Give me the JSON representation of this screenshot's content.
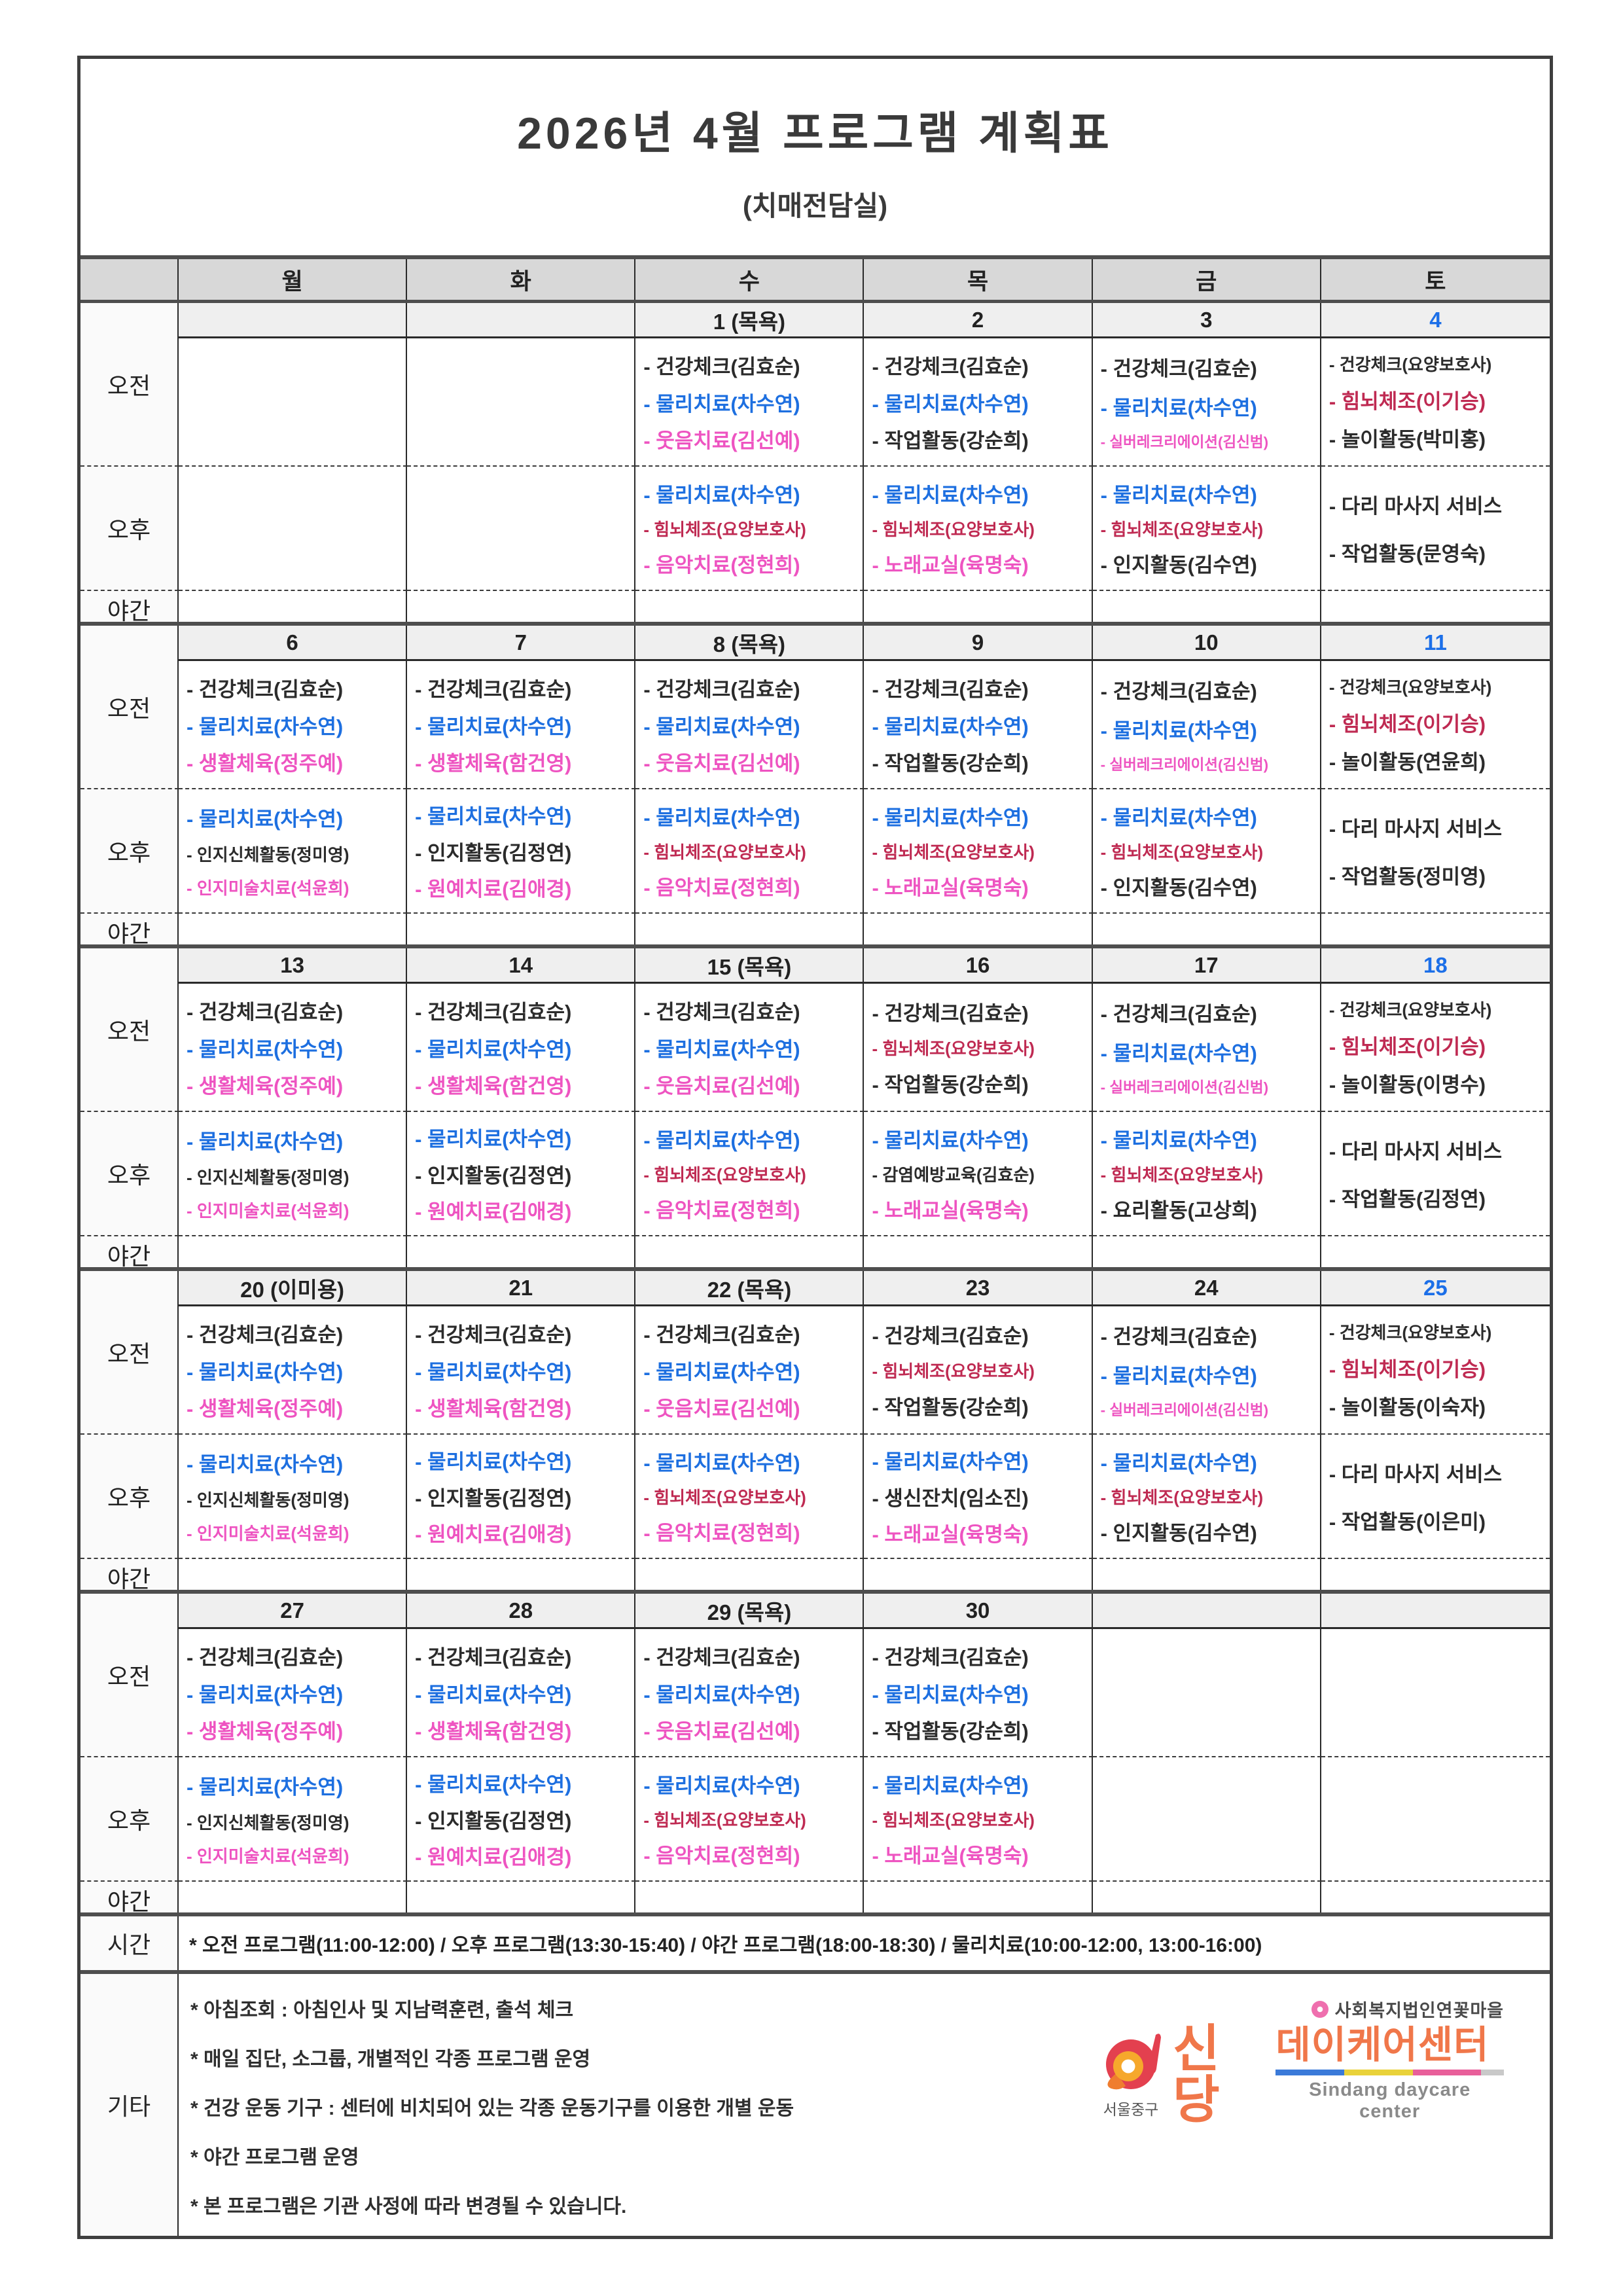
{
  "title": "2026년 4월 프로그램 계획표",
  "subtitle": "(치매전담실)",
  "day_headers": [
    "월",
    "화",
    "수",
    "목",
    "금",
    "토"
  ],
  "row_labels": {
    "am": "오전",
    "pm": "오후",
    "night": "야간",
    "time": "시간",
    "etc": "기타"
  },
  "palette": {
    "k": "#2b2b2b",
    "b": "#1d6fe0",
    "p": "#ee54c1",
    "r": "#bf2a52",
    "sat": "#1c6fe8"
  },
  "weeks": [
    {
      "dates": [
        {
          "t": "",
          "sat": false
        },
        {
          "t": "",
          "sat": false
        },
        {
          "t": "1 (목욕)",
          "sat": false
        },
        {
          "t": "2",
          "sat": false
        },
        {
          "t": "3",
          "sat": false
        },
        {
          "t": "4",
          "sat": true
        }
      ],
      "cells": [
        {
          "am": [],
          "pm": []
        },
        {
          "am": [],
          "pm": []
        },
        {
          "am": [
            [
              "건강체크(김효순)",
              "k"
            ],
            [
              "물리치료(차수연)",
              "b"
            ],
            [
              "웃음치료(김선예)",
              "p"
            ]
          ],
          "pm": [
            [
              "물리치료(차수연)",
              "b"
            ],
            [
              "힘뇌체조(요양보호사)",
              "r"
            ],
            [
              "음악치료(정현희)",
              "p"
            ]
          ]
        },
        {
          "am": [
            [
              "건강체크(김효순)",
              "k"
            ],
            [
              "물리치료(차수연)",
              "b"
            ],
            [
              "작업활동(강순희)",
              "k"
            ]
          ],
          "pm": [
            [
              "물리치료(차수연)",
              "b"
            ],
            [
              "힘뇌체조(요양보호사)",
              "r"
            ],
            [
              "노래교실(육명숙)",
              "p"
            ]
          ]
        },
        {
          "am": [
            [
              "건강체크(김효순)",
              "k"
            ],
            [
              "물리치료(차수연)",
              "b"
            ],
            [
              "실버레크리에이션(김신범)",
              "p"
            ]
          ],
          "pm": [
            [
              "물리치료(차수연)",
              "b"
            ],
            [
              "힘뇌체조(요양보호사)",
              "r"
            ],
            [
              "인지활동(김수연)",
              "k"
            ]
          ]
        },
        {
          "am": [
            [
              "건강체크(요양보호사)",
              "k"
            ],
            [
              "힘뇌체조(이기승)",
              "r"
            ],
            [
              "놀이활동(박미홍)",
              "k"
            ]
          ],
          "pm": [
            [
              "다리 마사지 서비스",
              "k"
            ],
            [
              "작업활동(문영숙)",
              "k"
            ]
          ]
        }
      ]
    },
    {
      "dates": [
        {
          "t": "6",
          "sat": false
        },
        {
          "t": "7",
          "sat": false
        },
        {
          "t": "8 (목욕)",
          "sat": false
        },
        {
          "t": "9",
          "sat": false
        },
        {
          "t": "10",
          "sat": false
        },
        {
          "t": "11",
          "sat": true
        }
      ],
      "cells": [
        {
          "am": [
            [
              "건강체크(김효순)",
              "k"
            ],
            [
              "물리치료(차수연)",
              "b"
            ],
            [
              "생활체육(정주예)",
              "p"
            ]
          ],
          "pm": [
            [
              "물리치료(차수연)",
              "b"
            ],
            [
              "인지신체활동(정미영)",
              "k"
            ],
            [
              "인지미술치료(석윤희)",
              "p"
            ]
          ]
        },
        {
          "am": [
            [
              "건강체크(김효순)",
              "k"
            ],
            [
              "물리치료(차수연)",
              "b"
            ],
            [
              "생활체육(함건영)",
              "p"
            ]
          ],
          "pm": [
            [
              "물리치료(차수연)",
              "b"
            ],
            [
              "인지활동(김정연)",
              "k"
            ],
            [
              "원예치료(김애경)",
              "p"
            ]
          ]
        },
        {
          "am": [
            [
              "건강체크(김효순)",
              "k"
            ],
            [
              "물리치료(차수연)",
              "b"
            ],
            [
              "웃음치료(김선예)",
              "p"
            ]
          ],
          "pm": [
            [
              "물리치료(차수연)",
              "b"
            ],
            [
              "힘뇌체조(요양보호사)",
              "r"
            ],
            [
              "음악치료(정현희)",
              "p"
            ]
          ]
        },
        {
          "am": [
            [
              "건강체크(김효순)",
              "k"
            ],
            [
              "물리치료(차수연)",
              "b"
            ],
            [
              "작업활동(강순희)",
              "k"
            ]
          ],
          "pm": [
            [
              "물리치료(차수연)",
              "b"
            ],
            [
              "힘뇌체조(요양보호사)",
              "r"
            ],
            [
              "노래교실(육명숙)",
              "p"
            ]
          ]
        },
        {
          "am": [
            [
              "건강체크(김효순)",
              "k"
            ],
            [
              "물리치료(차수연)",
              "b"
            ],
            [
              "실버레크리에이션(김신범)",
              "p"
            ]
          ],
          "pm": [
            [
              "물리치료(차수연)",
              "b"
            ],
            [
              "힘뇌체조(요양보호사)",
              "r"
            ],
            [
              "인지활동(김수연)",
              "k"
            ]
          ]
        },
        {
          "am": [
            [
              "건강체크(요양보호사)",
              "k"
            ],
            [
              "힘뇌체조(이기승)",
              "r"
            ],
            [
              "놀이활동(연윤희)",
              "k"
            ]
          ],
          "pm": [
            [
              "다리 마사지 서비스",
              "k"
            ],
            [
              "작업활동(정미영)",
              "k"
            ]
          ]
        }
      ]
    },
    {
      "dates": [
        {
          "t": "13",
          "sat": false
        },
        {
          "t": "14",
          "sat": false
        },
        {
          "t": "15 (목욕)",
          "sat": false
        },
        {
          "t": "16",
          "sat": false
        },
        {
          "t": "17",
          "sat": false
        },
        {
          "t": "18",
          "sat": true
        }
      ],
      "cells": [
        {
          "am": [
            [
              "건강체크(김효순)",
              "k"
            ],
            [
              "물리치료(차수연)",
              "b"
            ],
            [
              "생활체육(정주예)",
              "p"
            ]
          ],
          "pm": [
            [
              "물리치료(차수연)",
              "b"
            ],
            [
              "인지신체활동(정미영)",
              "k"
            ],
            [
              "인지미술치료(석윤희)",
              "p"
            ]
          ]
        },
        {
          "am": [
            [
              "건강체크(김효순)",
              "k"
            ],
            [
              "물리치료(차수연)",
              "b"
            ],
            [
              "생활체육(함건영)",
              "p"
            ]
          ],
          "pm": [
            [
              "물리치료(차수연)",
              "b"
            ],
            [
              "인지활동(김정연)",
              "k"
            ],
            [
              "원예치료(김애경)",
              "p"
            ]
          ]
        },
        {
          "am": [
            [
              "건강체크(김효순)",
              "k"
            ],
            [
              "물리치료(차수연)",
              "b"
            ],
            [
              "웃음치료(김선예)",
              "p"
            ]
          ],
          "pm": [
            [
              "물리치료(차수연)",
              "b"
            ],
            [
              "힘뇌체조(요양보호사)",
              "r"
            ],
            [
              "음악치료(정현희)",
              "p"
            ]
          ]
        },
        {
          "am": [
            [
              "건강체크(김효순)",
              "k"
            ],
            [
              "힘뇌체조(요양보호사)",
              "r"
            ],
            [
              "작업활동(강순희)",
              "k"
            ]
          ],
          "pm": [
            [
              "물리치료(차수연)",
              "b"
            ],
            [
              "감염예방교육(김효순)",
              "k"
            ],
            [
              "노래교실(육명숙)",
              "p"
            ]
          ]
        },
        {
          "am": [
            [
              "건강체크(김효순)",
              "k"
            ],
            [
              "물리치료(차수연)",
              "b"
            ],
            [
              "실버레크리에이션(김신범)",
              "p"
            ]
          ],
          "pm": [
            [
              "물리치료(차수연)",
              "b"
            ],
            [
              "힘뇌체조(요양보호사)",
              "r"
            ],
            [
              "요리활동(고상희)",
              "k"
            ]
          ]
        },
        {
          "am": [
            [
              "건강체크(요양보호사)",
              "k"
            ],
            [
              "힘뇌체조(이기승)",
              "r"
            ],
            [
              "놀이활동(이명수)",
              "k"
            ]
          ],
          "pm": [
            [
              "다리 마사지 서비스",
              "k"
            ],
            [
              "작업활동(김정연)",
              "k"
            ]
          ]
        }
      ]
    },
    {
      "dates": [
        {
          "t": "20 (이미용)",
          "sat": false
        },
        {
          "t": "21",
          "sat": false
        },
        {
          "t": "22 (목욕)",
          "sat": false
        },
        {
          "t": "23",
          "sat": false
        },
        {
          "t": "24",
          "sat": false
        },
        {
          "t": "25",
          "sat": true
        }
      ],
      "cells": [
        {
          "am": [
            [
              "건강체크(김효순)",
              "k"
            ],
            [
              "물리치료(차수연)",
              "b"
            ],
            [
              "생활체육(정주예)",
              "p"
            ]
          ],
          "pm": [
            [
              "물리치료(차수연)",
              "b"
            ],
            [
              "인지신체활동(정미영)",
              "k"
            ],
            [
              "인지미술치료(석윤희)",
              "p"
            ]
          ]
        },
        {
          "am": [
            [
              "건강체크(김효순)",
              "k"
            ],
            [
              "물리치료(차수연)",
              "b"
            ],
            [
              "생활체육(함건영)",
              "p"
            ]
          ],
          "pm": [
            [
              "물리치료(차수연)",
              "b"
            ],
            [
              "인지활동(김정연)",
              "k"
            ],
            [
              "원예치료(김애경)",
              "p"
            ]
          ]
        },
        {
          "am": [
            [
              "건강체크(김효순)",
              "k"
            ],
            [
              "물리치료(차수연)",
              "b"
            ],
            [
              "웃음치료(김선예)",
              "p"
            ]
          ],
          "pm": [
            [
              "물리치료(차수연)",
              "b"
            ],
            [
              "힘뇌체조(요양보호사)",
              "r"
            ],
            [
              "음악치료(정현희)",
              "p"
            ]
          ]
        },
        {
          "am": [
            [
              "건강체크(김효순)",
              "k"
            ],
            [
              "힘뇌체조(요양보호사)",
              "r"
            ],
            [
              "작업활동(강순희)",
              "k"
            ]
          ],
          "pm": [
            [
              "물리치료(차수연)",
              "b"
            ],
            [
              "생신잔치(임소진)",
              "k"
            ],
            [
              "노래교실(육명숙)",
              "p"
            ]
          ]
        },
        {
          "am": [
            [
              "건강체크(김효순)",
              "k"
            ],
            [
              "물리치료(차수연)",
              "b"
            ],
            [
              "실버레크리에이션(김신범)",
              "p"
            ]
          ],
          "pm": [
            [
              "물리치료(차수연)",
              "b"
            ],
            [
              "힘뇌체조(요양보호사)",
              "r"
            ],
            [
              "인지활동(김수연)",
              "k"
            ]
          ]
        },
        {
          "am": [
            [
              "건강체크(요양보호사)",
              "k"
            ],
            [
              "힘뇌체조(이기승)",
              "r"
            ],
            [
              "놀이활동(이숙자)",
              "k"
            ]
          ],
          "pm": [
            [
              "다리 마사지 서비스",
              "k"
            ],
            [
              "작업활동(이은미)",
              "k"
            ]
          ]
        }
      ]
    },
    {
      "dates": [
        {
          "t": "27",
          "sat": false
        },
        {
          "t": "28",
          "sat": false
        },
        {
          "t": "29 (목욕)",
          "sat": false
        },
        {
          "t": "30",
          "sat": false
        },
        {
          "t": "",
          "sat": false
        },
        {
          "t": "",
          "sat": false
        }
      ],
      "cells": [
        {
          "am": [
            [
              "건강체크(김효순)",
              "k"
            ],
            [
              "물리치료(차수연)",
              "b"
            ],
            [
              "생활체육(정주예)",
              "p"
            ]
          ],
          "pm": [
            [
              "물리치료(차수연)",
              "b"
            ],
            [
              "인지신체활동(정미영)",
              "k"
            ],
            [
              "인지미술치료(석윤희)",
              "p"
            ]
          ]
        },
        {
          "am": [
            [
              "건강체크(김효순)",
              "k"
            ],
            [
              "물리치료(차수연)",
              "b"
            ],
            [
              "생활체육(함건영)",
              "p"
            ]
          ],
          "pm": [
            [
              "물리치료(차수연)",
              "b"
            ],
            [
              "인지활동(김정연)",
              "k"
            ],
            [
              "원예치료(김애경)",
              "p"
            ]
          ]
        },
        {
          "am": [
            [
              "건강체크(김효순)",
              "k"
            ],
            [
              "물리치료(차수연)",
              "b"
            ],
            [
              "웃음치료(김선예)",
              "p"
            ]
          ],
          "pm": [
            [
              "물리치료(차수연)",
              "b"
            ],
            [
              "힘뇌체조(요양보호사)",
              "r"
            ],
            [
              "음악치료(정현희)",
              "p"
            ]
          ]
        },
        {
          "am": [
            [
              "건강체크(김효순)",
              "k"
            ],
            [
              "물리치료(차수연)",
              "b"
            ],
            [
              "작업활동(강순희)",
              "k"
            ]
          ],
          "pm": [
            [
              "물리치료(차수연)",
              "b"
            ],
            [
              "힘뇌체조(요양보호사)",
              "r"
            ],
            [
              "노래교실(육명숙)",
              "p"
            ]
          ]
        },
        {
          "am": [],
          "pm": []
        },
        {
          "am": [],
          "pm": []
        }
      ]
    }
  ],
  "time_row": "* 오전 프로그램(11:00-12:00) / 오후 프로그램(13:30-15:40) / 야간 프로그램(18:00-18:30) / 물리치료(10:00-12:00, 13:00-16:00)",
  "etc_notes": [
    "* 아침조회 : 아침인사 및 지남력훈련, 출석 체크",
    "* 매일 집단, 소그룹, 개별적인 각종 프로그램 운영",
    "* 건강 운동 기구 : 센터에 비치되어 있는 각종 운동기구를 이용한 개별 운동",
    "* 야간 프로그램 운영",
    "* 본 프로그램은 기관 사정에 따라 변경될 수 있습니다."
  ],
  "logo": {
    "org_small": "사회복지법인연꽃마을",
    "name_main": "신당",
    "name_rest": "데이케어센터",
    "english": "Sindang daycare center",
    "district": "서울중구"
  }
}
